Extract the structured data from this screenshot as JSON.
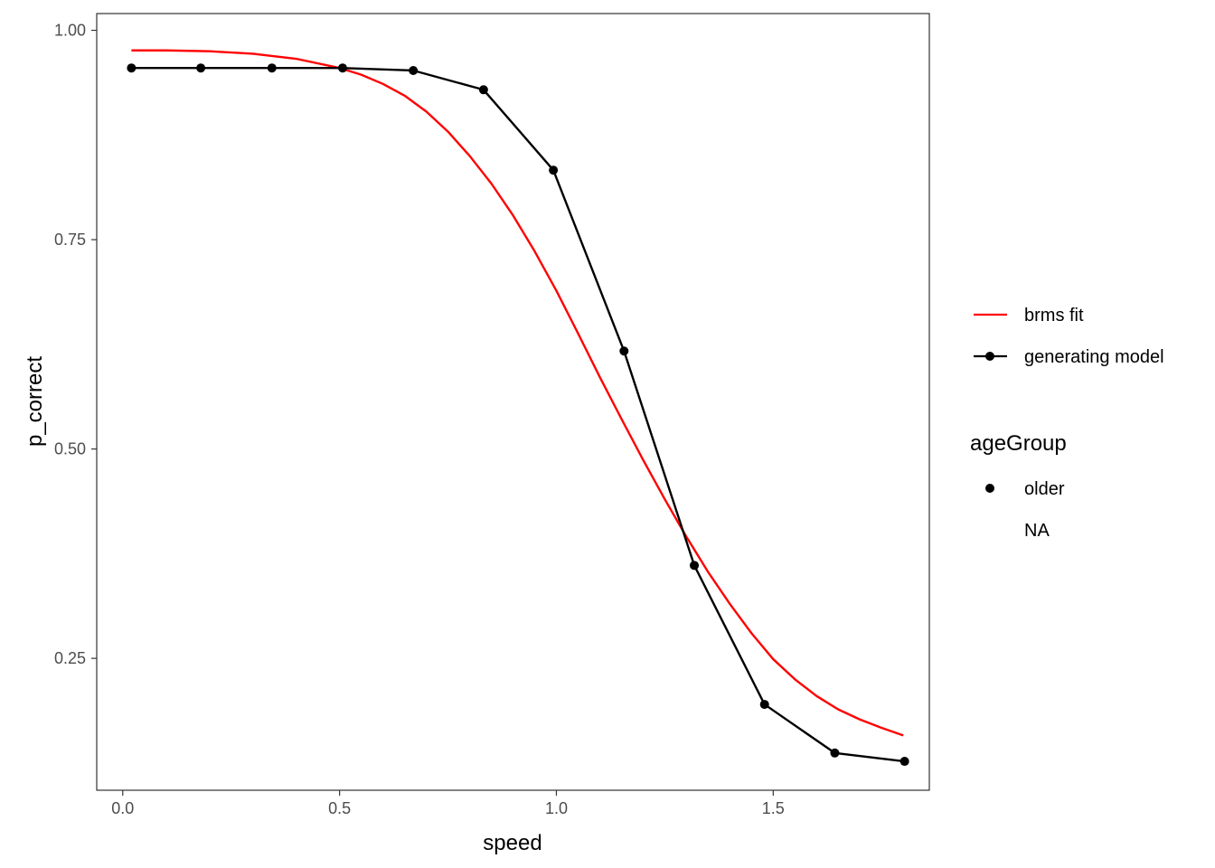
{
  "chart_data": {
    "type": "line",
    "xlabel": "speed",
    "ylabel": "p_correct",
    "xlim": [
      -0.06,
      1.86
    ],
    "ylim": [
      0.0925,
      1.02
    ],
    "x_ticks": [
      0.0,
      0.5,
      1.0,
      1.5
    ],
    "x_tick_labels": [
      "0.0",
      "0.5",
      "1.0",
      "1.5"
    ],
    "y_ticks": [
      0.25,
      0.5,
      0.75,
      1.0
    ],
    "y_tick_labels": [
      "0.25",
      "0.50",
      "0.75",
      "1.00"
    ],
    "grid": false,
    "legend_position": "right",
    "series": [
      {
        "name": "brms fit",
        "color": "#ff0000",
        "style": "line",
        "x": [
          0.02,
          0.1,
          0.2,
          0.3,
          0.4,
          0.5,
          0.55,
          0.6,
          0.65,
          0.7,
          0.75,
          0.8,
          0.85,
          0.9,
          0.95,
          1.0,
          1.05,
          1.1,
          1.15,
          1.2,
          1.25,
          1.3,
          1.35,
          1.4,
          1.45,
          1.5,
          1.55,
          1.6,
          1.65,
          1.7,
          1.75,
          1.8
        ],
        "y": [
          0.976,
          0.976,
          0.975,
          0.972,
          0.966,
          0.955,
          0.947,
          0.936,
          0.922,
          0.903,
          0.879,
          0.85,
          0.817,
          0.779,
          0.736,
          0.689,
          0.638,
          0.586,
          0.536,
          0.487,
          0.44,
          0.395,
          0.353,
          0.315,
          0.28,
          0.249,
          0.225,
          0.205,
          0.189,
          0.177,
          0.167,
          0.158
        ]
      },
      {
        "name": "generating model",
        "color": "#000000",
        "style": "line-points",
        "x": [
          0.02,
          0.18,
          0.344,
          0.507,
          0.67,
          0.832,
          0.993,
          1.156,
          1.318,
          1.48,
          1.642,
          1.803
        ],
        "y": [
          0.955,
          0.955,
          0.955,
          0.955,
          0.952,
          0.929,
          0.833,
          0.617,
          0.361,
          0.195,
          0.137,
          0.127
        ]
      }
    ],
    "legend": {
      "items": [
        {
          "label": "brms fit",
          "kind": "line",
          "color": "#ff0000"
        },
        {
          "label": "generating model",
          "kind": "line-point",
          "color": "#000000"
        }
      ],
      "shape_title": "ageGroup",
      "shape_items": [
        {
          "label": "older",
          "kind": "point"
        },
        {
          "label": "NA",
          "kind": "none"
        }
      ]
    }
  }
}
